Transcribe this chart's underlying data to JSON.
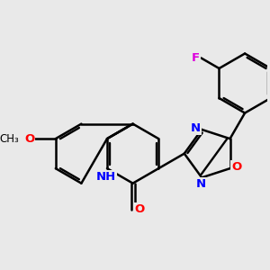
{
  "background_color": "#e9e9e9",
  "bond_color": "#000000",
  "bond_width": 1.8,
  "fig_width": 3.0,
  "fig_height": 3.0,
  "dpi": 100,
  "colors": {
    "F": "#dd00dd",
    "O": "#ff0000",
    "N": "#0000ff",
    "NH": "#0000ff",
    "C": "#000000"
  }
}
